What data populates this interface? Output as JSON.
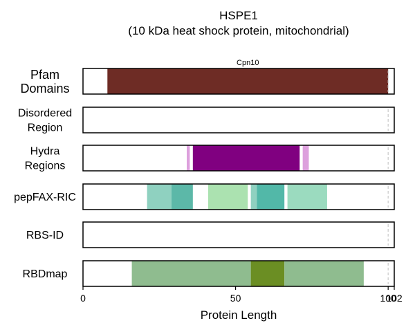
{
  "chart_data": {
    "type": "bar",
    "title": "HSPE1",
    "subtitle": "(10 kDa heat shock protein, mitochondrial)",
    "xlabel": "Protein Length",
    "xlim": [
      0,
      102
    ],
    "xticks": [
      "0",
      "50",
      "100",
      "102"
    ],
    "protein_length": 102,
    "tracks": [
      {
        "label": "Pfam\nDomains",
        "segments": [
          {
            "start": 8,
            "end": 100,
            "color": "#6e2c25",
            "label": "Cpn10"
          }
        ]
      },
      {
        "label": "Disordered\nRegion",
        "segments": []
      },
      {
        "label": "Hydra\nRegions",
        "segments": [
          {
            "start": 34,
            "end": 35,
            "color": "#dda0dd"
          },
          {
            "start": 36,
            "end": 71,
            "color": "#800080"
          },
          {
            "start": 72,
            "end": 74,
            "color": "#dda0dd"
          }
        ]
      },
      {
        "label": "pepFAX-RIC",
        "segments": [
          {
            "start": 21,
            "end": 29,
            "color": "#8fd1c0"
          },
          {
            "start": 29,
            "end": 36,
            "color": "#5cb8a8"
          },
          {
            "start": 41,
            "end": 54,
            "color": "#abe2b0"
          },
          {
            "start": 55,
            "end": 57,
            "color": "#8fd1c0"
          },
          {
            "start": 57,
            "end": 66,
            "color": "#52b8a8"
          },
          {
            "start": 67,
            "end": 80,
            "color": "#9bdbbf"
          }
        ]
      },
      {
        "label": "RBS-ID",
        "segments": []
      },
      {
        "label": "RBDmap",
        "segments": [
          {
            "start": 16,
            "end": 55,
            "color": "#8fbc8f"
          },
          {
            "start": 55,
            "end": 66,
            "color": "#6b8e23"
          },
          {
            "start": 66,
            "end": 92,
            "color": "#8fbc8f"
          }
        ]
      }
    ],
    "grid": false
  }
}
